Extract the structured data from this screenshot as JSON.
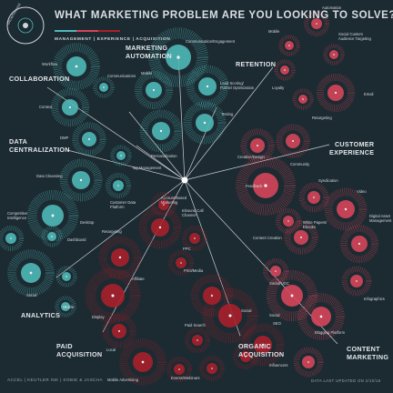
{
  "header": {
    "title": "WHAT MARKETING PROBLEM ARE YOU LOOKING TO SOLVE?",
    "subtitle": "MANAGEMENT | EXPERIENCE | ACQUISITION",
    "brand": "GROWTHVERSE"
  },
  "colors": {
    "background": "#1c2a31",
    "management": "#4fb8b8",
    "experience": "#d6455a",
    "acquisition": "#a8202c",
    "spoke": "#e8ecef"
  },
  "categories": {
    "collaboration": "COLLABORATION",
    "marketing_automation": "MARKETING\nAUTOMATION",
    "retention": "RETENTION",
    "data_centralization": "DATA\nCENTRALIZATION",
    "customer_experience": "CUSTOMER\nEXPERIENCE",
    "analytics": "ANALYTICS",
    "paid_acquisition": "PAID\nACQUISITION",
    "organic_acquisition": "ORGANIC\nACQUISITION",
    "content_marketing": "CONTENT\nMARKETING"
  },
  "labels": {
    "workflow": "Workflow",
    "communications": "Communications",
    "context": "Context",
    "mobile_ma": "Mobile",
    "lead_scoring": "Lead Scoring/\nFunnel Optimization",
    "testing": "Testing",
    "personalization": "Personalization",
    "communication_engagement": "Communication/Engagement",
    "automation": "Automation",
    "mobile_ret": "Mobile",
    "social_custom": "Social Custom\nAudience Targeting",
    "loyalty": "Loyalty",
    "email": "Email",
    "retargeting_ret": "Retargeting",
    "dmp": "DMP",
    "tag_management": "Tag Management",
    "data_cleansing": "Data Cleansing",
    "customer_data_platform": "Customer Data\nPlatform",
    "creative_design": "Creative/Design",
    "community": "Community",
    "feedback": "Feedback",
    "syndication": "Syndication",
    "video": "Video",
    "digital_asset": "Digital Asset\nManagement",
    "white_papers": "White Papers/\nEbooks",
    "content_creation": "Content Creation",
    "competitive_intelligence": "Competitive\nIntelligence",
    "desktop": "Desktop",
    "dashboard": "Dashboard",
    "social_an": "Social",
    "mobile_an": "Mobile",
    "account_based": "Account Based\nMarketing",
    "inbound_call": "Inbound Call\nChannel",
    "retargeting_paid": "Retargeting",
    "ppc": "PPC",
    "affiliate": "Affiliate",
    "display": "Display",
    "local": "Local",
    "mobile_advertising": "Mobile Advertising",
    "print_media": "Print/Media",
    "social_paid": "Social",
    "paid_search": "Paid Search",
    "events_webinars": "Events/Webinars",
    "social_organic": "Social",
    "seo": "SEO",
    "influencers": "Influencers",
    "social_ugc": "Social/UGC",
    "blogging": "Blogging Platform",
    "infographics": "Infographics",
    "social_content": "Social"
  },
  "footer": {
    "credit": "ACCEL | KEUTLER INK | KOBIE & JASCHA",
    "updated": "DATA LAST UPDATED ON 2/10/16"
  }
}
